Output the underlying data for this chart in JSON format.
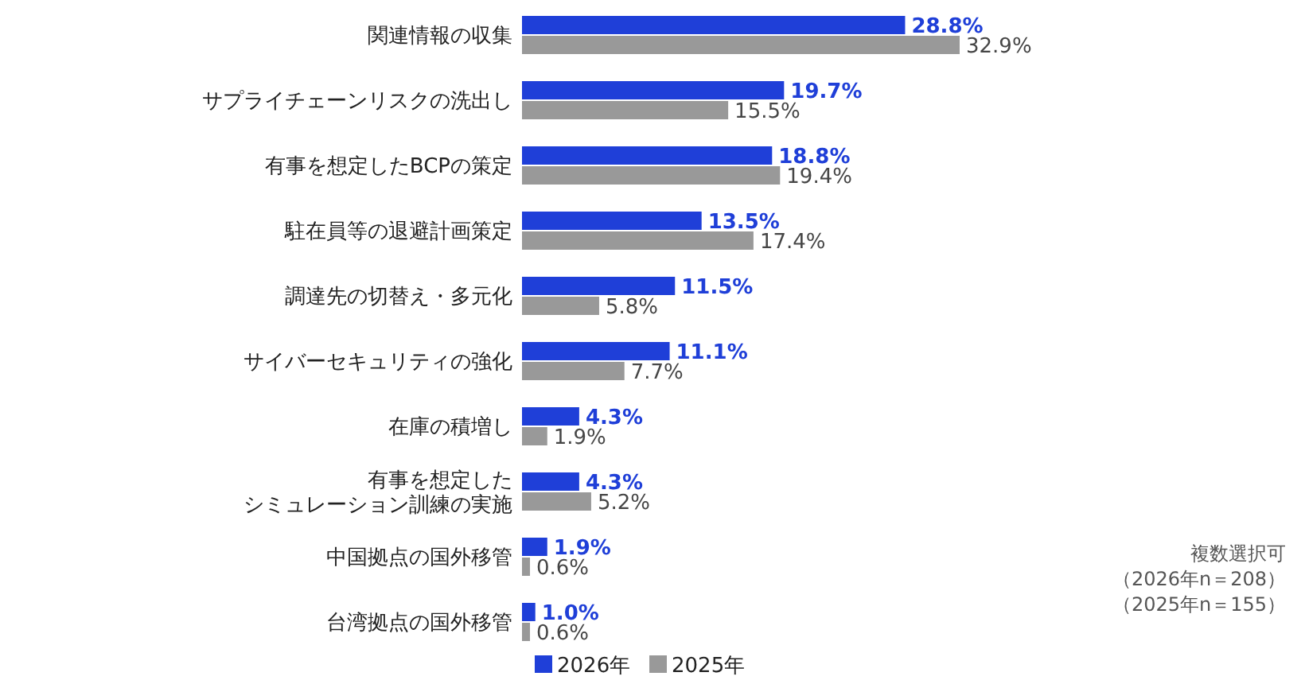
{
  "chart_data": {
    "type": "bar",
    "orientation": "horizontal",
    "categories": [
      "関連情報の収集",
      "サプライチェーンリスクの洗出し",
      "有事を想定したBCPの策定",
      "駐在員等の退避計画策定",
      "調達先の切替え・多元化",
      "サイバーセキュリティの強化",
      "在庫の積増し",
      "有事を想定したシミュレーション訓練の実施",
      "中国拠点の国外移管",
      "台湾拠点の国外移管"
    ],
    "series": [
      {
        "name": "2026年",
        "color": "#1f3fd8",
        "values": [
          28.8,
          19.7,
          18.8,
          13.5,
          11.5,
          11.1,
          4.3,
          4.3,
          1.9,
          1.0
        ],
        "value_labels": [
          "28.8%",
          "19.7%",
          "18.8%",
          "13.5%",
          "11.5%",
          "11.1%",
          "4.3%",
          "4.3%",
          "1.9%",
          "1.0%"
        ]
      },
      {
        "name": "2025年",
        "color": "#999999",
        "values": [
          32.9,
          15.5,
          19.4,
          17.4,
          5.8,
          7.7,
          1.9,
          5.2,
          0.6,
          0.6
        ],
        "value_labels": [
          "32.9%",
          "15.5%",
          "19.4%",
          "17.4%",
          "5.8%",
          "7.7%",
          "1.9%",
          "5.2%",
          "0.6%",
          "0.6%"
        ]
      }
    ],
    "legend": "bottom",
    "annotations": [
      "複数選択可",
      "（2026年n＝208）",
      "（2025年n＝155）"
    ]
  }
}
